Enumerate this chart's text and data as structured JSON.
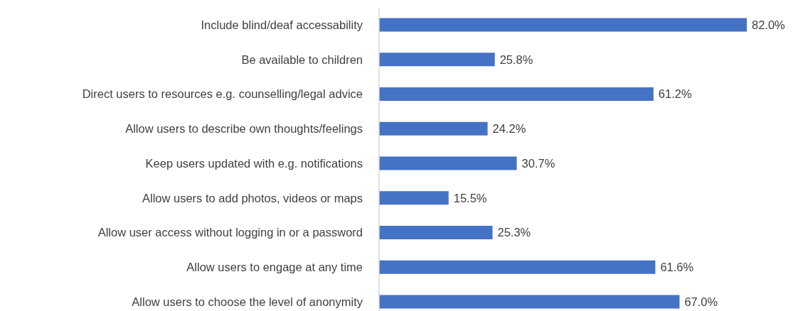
{
  "chart_data": {
    "type": "bar",
    "orientation": "horizontal",
    "color": "#4472c4",
    "categories": [
      "Include blind/deaf accessability",
      "Be available to children",
      "Direct users to resources e.g. counselling/legal advice",
      "Allow users to describe own thoughts/feelings",
      "Keep users updated with e.g. notifications",
      "Allow users to add photos, videos or maps",
      "Allow user access without logging in or a password",
      "Allow users to engage at any time",
      "Allow users to choose the level of anonymity"
    ],
    "values": [
      82.0,
      25.8,
      61.2,
      24.2,
      30.7,
      15.5,
      25.3,
      61.6,
      67.0
    ],
    "value_labels": [
      "82.0%",
      "25.8%",
      "61.2%",
      "24.2%",
      "30.7%",
      "15.5%",
      "25.3%",
      "61.6%",
      "67.0%"
    ]
  }
}
